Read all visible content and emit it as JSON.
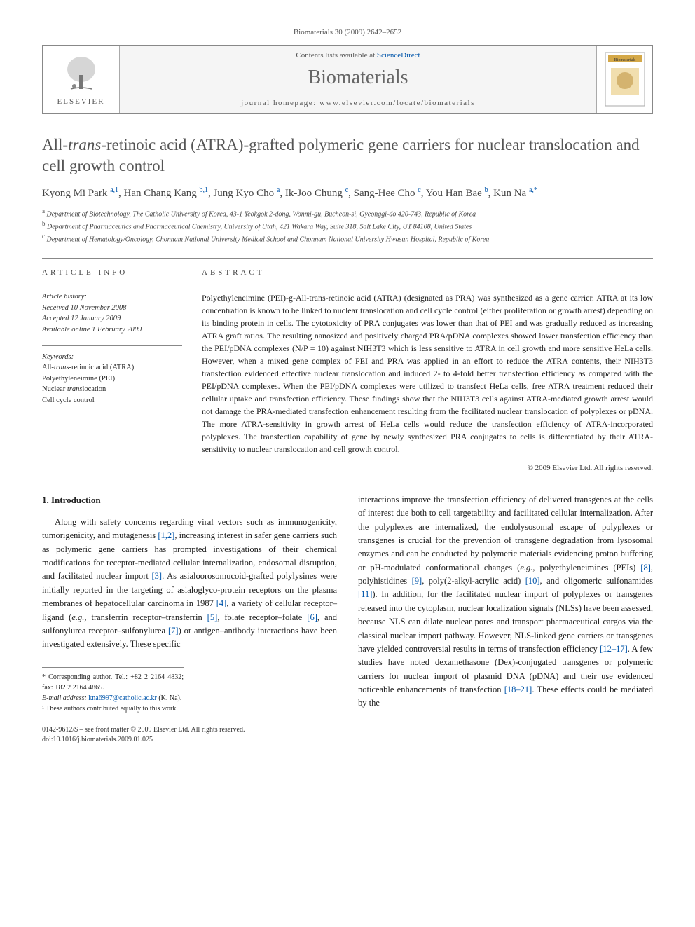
{
  "citation": "Biomaterials 30 (2009) 2642–2652",
  "header": {
    "contents_prefix": "Contents lists available at ",
    "sciencedirect": "ScienceDirect",
    "journal": "Biomaterials",
    "homepage_prefix": "journal homepage: ",
    "homepage": "www.elsevier.com/locate/biomaterials",
    "elsevier": "ELSEVIER"
  },
  "title_line1": "All-",
  "title_em": "trans",
  "title_line2": "-retinoic acid (ATRA)-grafted polymeric gene carriers for nuclear translocation and cell growth control",
  "authors_html_parts": [
    {
      "name": "Kyong Mi Park",
      "sup": "a,1"
    },
    {
      "name": "Han Chang Kang",
      "sup": "b,1"
    },
    {
      "name": "Jung Kyo Cho",
      "sup": "a"
    },
    {
      "name": "Ik-Joo Chung",
      "sup": "c"
    },
    {
      "name": "Sang-Hee Cho",
      "sup": "c"
    },
    {
      "name": "You Han Bae",
      "sup": "b"
    },
    {
      "name": "Kun Na",
      "sup": "a,*"
    }
  ],
  "affiliations": [
    {
      "sup": "a",
      "text": "Department of Biotechnology, The Catholic University of Korea, 43-1 Yeokgok 2-dong, Wonmi-gu, Bucheon-si, Gyeonggi-do 420-743, Republic of Korea"
    },
    {
      "sup": "b",
      "text": "Department of Pharmaceutics and Pharmaceutical Chemistry, University of Utah, 421 Wakara Way, Suite 318, Salt Lake City, UT 84108, United States"
    },
    {
      "sup": "c",
      "text": "Department of Hematology/Oncology, Chonnam National University Medical School and Chonnam National University Hwasun Hospital, Republic of Korea"
    }
  ],
  "info": {
    "heading": "ARTICLE INFO",
    "history_label": "Article history:",
    "received": "Received 10 November 2008",
    "accepted": "Accepted 12 January 2009",
    "online": "Available online 1 February 2009",
    "keywords_label": "Keywords:",
    "keywords": [
      "All-trans-retinoic acid (ATRA)",
      "Polyethyleneimine (PEI)",
      "Nuclear translocation",
      "Cell cycle control"
    ]
  },
  "abstract": {
    "heading": "ABSTRACT",
    "text": "Polyethyleneimine (PEI)-g-All-trans-retinoic acid (ATRA) (designated as PRA) was synthesized as a gene carrier. ATRA at its low concentration is known to be linked to nuclear translocation and cell cycle control (either proliferation or growth arrest) depending on its binding protein in cells. The cytotoxicity of PRA conjugates was lower than that of PEI and was gradually reduced as increasing ATRA graft ratios. The resulting nanosized and positively charged PRA/pDNA complexes showed lower transfection efficiency than the PEI/pDNA complexes (N/P = 10) against NIH3T3 which is less sensitive to ATRA in cell growth and more sensitive HeLa cells. However, when a mixed gene complex of PEI and PRA was applied in an effort to reduce the ATRA contents, their NIH3T3 transfection evidenced effective nuclear translocation and induced 2- to 4-fold better transfection efficiency as compared with the PEI/pDNA complexes. When the PEI/pDNA complexes were utilized to transfect HeLa cells, free ATRA treatment reduced their cellular uptake and transfection efficiency. These findings show that the NIH3T3 cells against ATRA-mediated growth arrest would not damage the PRA-mediated transfection enhancement resulting from the facilitated nuclear translocation of polyplexes or pDNA. The more ATRA-sensitivity in growth arrest of HeLa cells would reduce the transfection efficiency of ATRA-incorporated polyplexes. The transfection capability of gene by newly synthesized PRA conjugates to cells is differentiated by their ATRA-sensitivity to nuclear translocation and cell growth control.",
    "copyright": "© 2009 Elsevier Ltd. All rights reserved."
  },
  "section1_heading": "1. Introduction",
  "col1_text": "Along with safety concerns regarding viral vectors such as immunogenicity, tumorigenicity, and mutagenesis [1,2], increasing interest in safer gene carriers such as polymeric gene carriers has prompted investigations of their chemical modifications for receptor-mediated cellular internalization, endosomal disruption, and facilitated nuclear import [3]. As asialoorosomucoid-grafted polylysines were initially reported in the targeting of asialoglyco-protein receptors on the plasma membranes of hepatocellular carcinoma in 1987 [4], a variety of cellular receptor–ligand (e.g., transferrin receptor–transferrin [5], folate receptor–folate [6], and sulfonylurea receptor–sulfonylurea [7]) or antigen–antibody interactions have been investigated extensively. These specific",
  "col2_text": "interactions improve the transfection efficiency of delivered transgenes at the cells of interest due both to cell targetability and facilitated cellular internalization. After the polyplexes are internalized, the endolysosomal escape of polyplexes or transgenes is crucial for the prevention of transgene degradation from lysosomal enzymes and can be conducted by polymeric materials evidencing proton buffering or pH-modulated conformational changes (e.g., polyethyleneimines (PEIs) [8], polyhistidines [9], poly(2-alkyl-acrylic acid) [10], and oligomeric sulfonamides [11]). In addition, for the facilitated nuclear import of polyplexes or transgenes released into the cytoplasm, nuclear localization signals (NLSs) have been assessed, because NLS can dilate nuclear pores and transport pharmaceutical cargos via the classical nuclear import pathway. However, NLS-linked gene carriers or transgenes have yielded controversial results in terms of transfection efficiency [12–17]. A few studies have noted dexamethasone (Dex)-conjugated transgenes or polymeric carriers for nuclear import of plasmid DNA (pDNA) and their use evidenced noticeable enhancements of transfection [18–21]. These effects could be mediated by the",
  "footnotes": {
    "corr": "* Corresponding author. Tel.: +82 2 2164 4832; fax: +82 2 2164 4865.",
    "email_label": "E-mail address:",
    "email": "kna6997@catholic.ac.kr",
    "email_who": "(K. Na).",
    "equal": "¹ These authors contributed equally to this work."
  },
  "footer": {
    "issn": "0142-9612/$ – see front matter © 2009 Elsevier Ltd. All rights reserved.",
    "doi": "doi:10.1016/j.biomaterials.2009.01.025"
  },
  "colors": {
    "link": "#0055aa",
    "text": "#2a2a2a",
    "rule": "#888888",
    "muted": "#555555"
  }
}
